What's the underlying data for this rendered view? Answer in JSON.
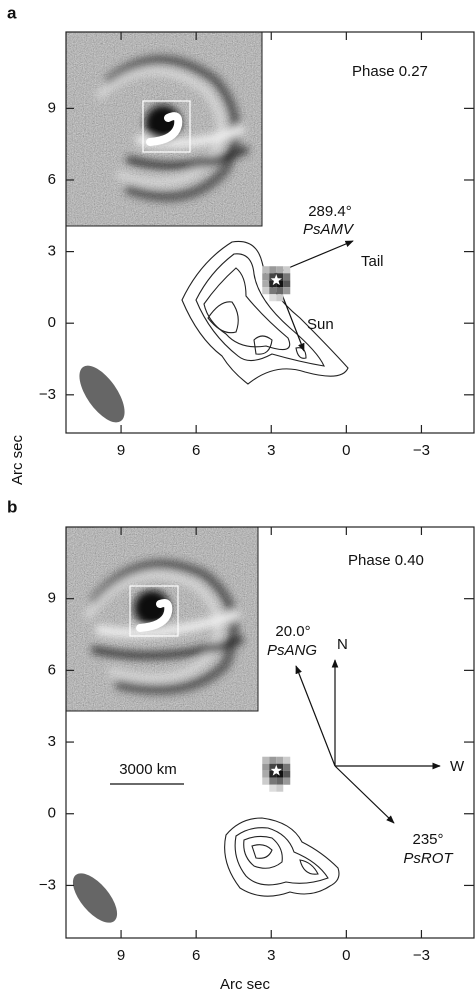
{
  "chart_data": [
    {
      "type": "image",
      "panel": "a",
      "annotation": "Phase 0.27",
      "xlim": [
        11.2,
        -5.1
      ],
      "ylim": [
        -4.6,
        12.2
      ],
      "xticks": [
        9,
        6,
        3,
        0,
        {
          "value": -3,
          "label": "−3"
        }
      ],
      "yticks": [
        9,
        6,
        3,
        0,
        {
          "value": -3,
          "label": "−3"
        }
      ],
      "y_label": "Arc sec",
      "source_x": 2.8,
      "source_y": 1.8,
      "angle_label": "289.4°",
      "angle_name": "PsAMV",
      "tail_label": "Tail",
      "sun_label": "Sun"
    },
    {
      "type": "image",
      "panel": "b",
      "annotation": "Phase 0.40",
      "xlim": [
        11.2,
        -5.1
      ],
      "ylim": [
        -5.2,
        12.0
      ],
      "xticks": [
        9,
        6,
        3,
        0,
        {
          "value": -3,
          "label": "−3"
        }
      ],
      "yticks": [
        9,
        6,
        3,
        0,
        {
          "value": -3,
          "label": "−3"
        }
      ],
      "x_label": "Arc sec",
      "source_x": 2.8,
      "source_y": 1.8,
      "ang_label": "20.0°",
      "ang_name": "PsANG",
      "north": "N",
      "west": "W",
      "rot_label": "235°",
      "rot_name": "PsROT",
      "scale_bar": "3000 km"
    }
  ]
}
